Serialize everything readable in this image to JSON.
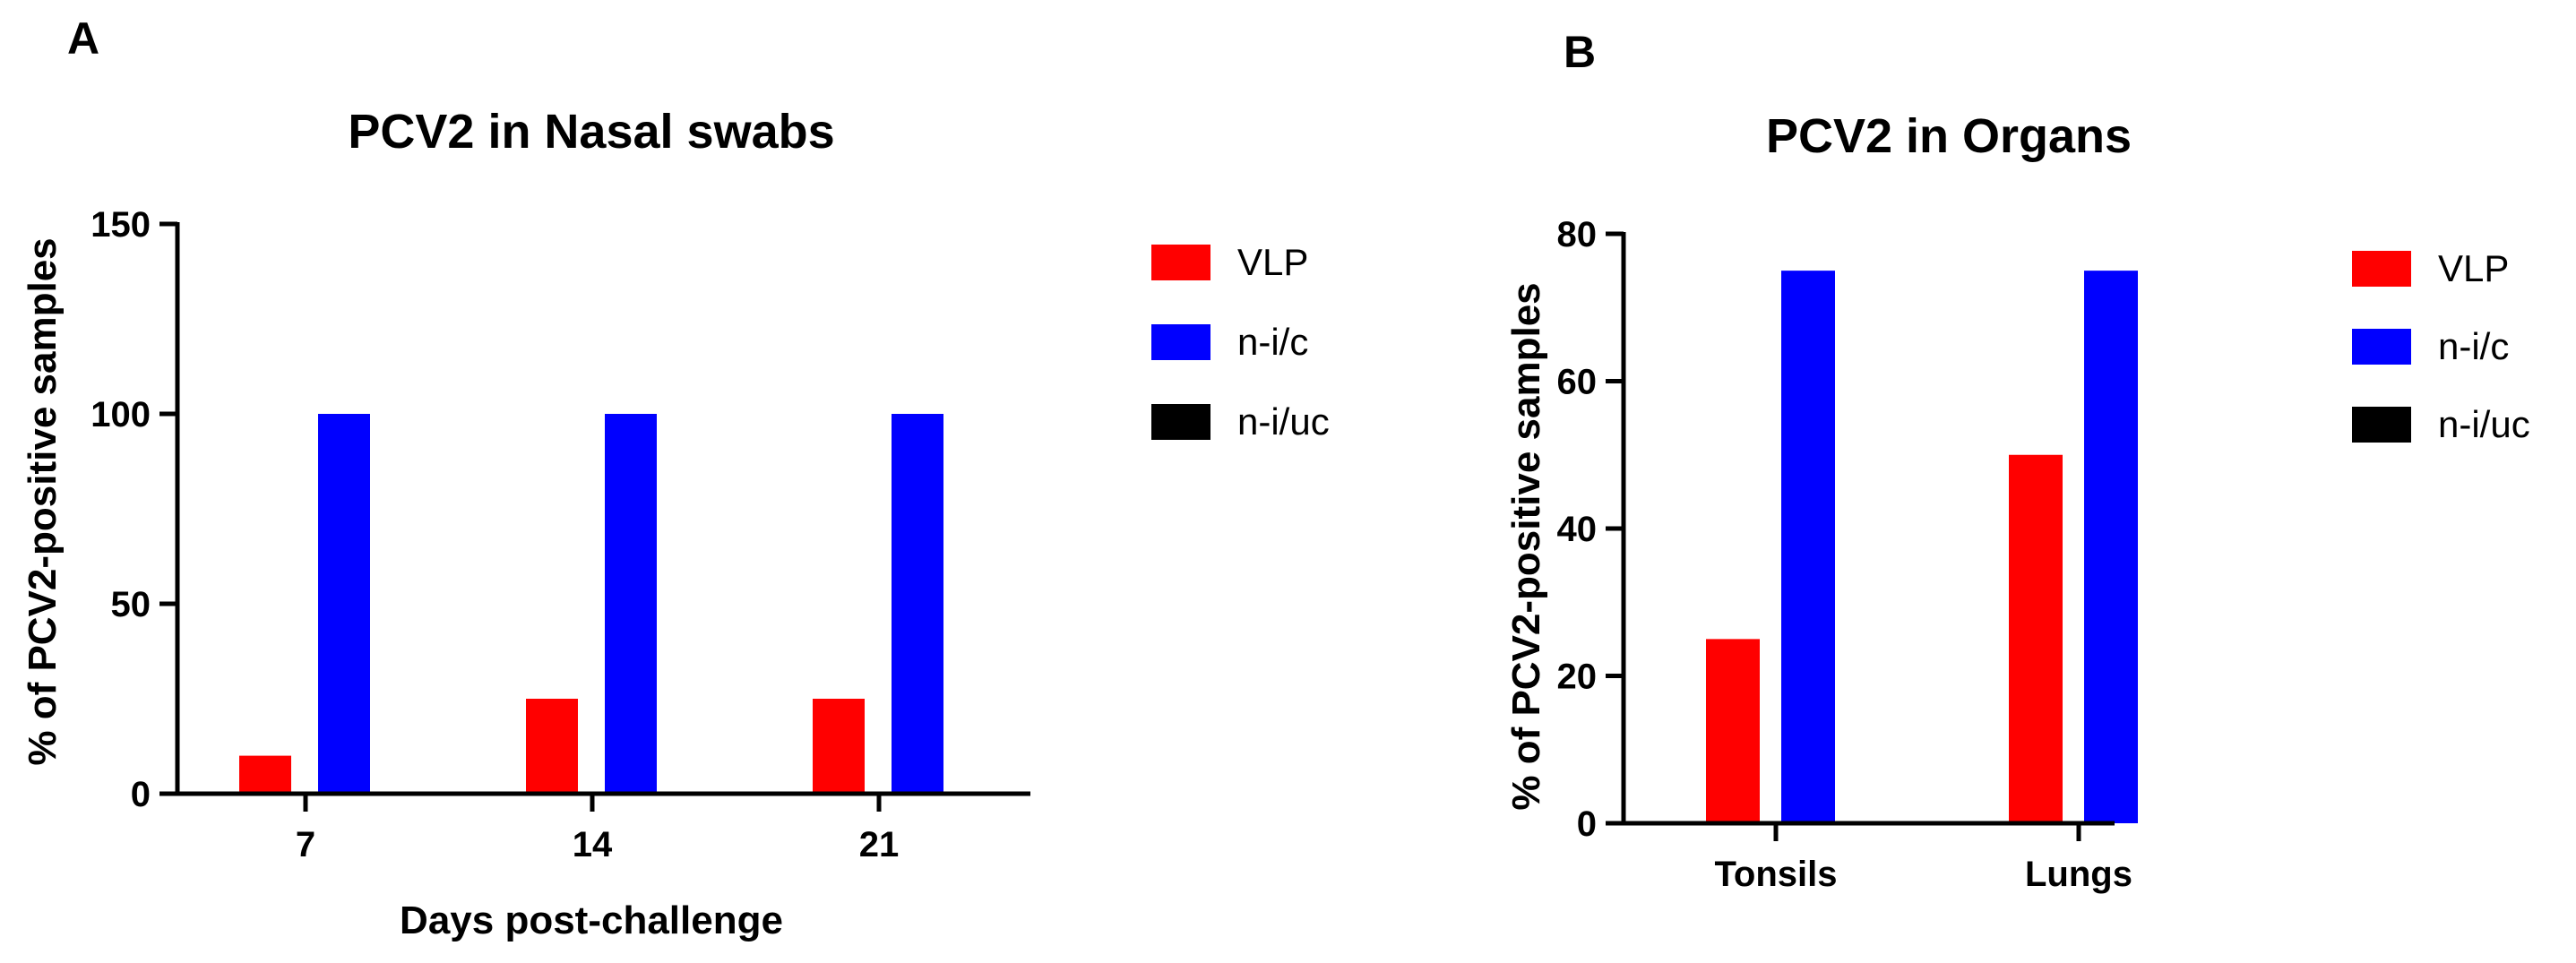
{
  "chart_data": [
    {
      "type": "bar",
      "panel_label": "A",
      "title": "PCV2 in Nasal swabs",
      "xlabel": "Days post-challenge",
      "ylabel": "% of PCV2-positive samples",
      "categories": [
        "7",
        "14",
        "21"
      ],
      "ylim": [
        0,
        150
      ],
      "yticks": [
        0,
        50,
        100,
        150
      ],
      "series": [
        {
          "name": "VLP",
          "color": "#ff0000",
          "values": [
            10,
            25,
            25
          ]
        },
        {
          "name": "n-i/c",
          "color": "#0000ff",
          "values": [
            100,
            100,
            100
          ]
        },
        {
          "name": "n-i/uc",
          "color": "#000000",
          "values": [
            0,
            0,
            0
          ]
        }
      ],
      "legend": "right"
    },
    {
      "type": "bar",
      "panel_label": "B",
      "title": "PCV2 in Organs",
      "xlabel": "",
      "ylabel": "% of PCV2-positive samples",
      "categories": [
        "Tonsils",
        "Lungs"
      ],
      "ylim": [
        0,
        80
      ],
      "yticks": [
        0,
        20,
        40,
        60,
        80
      ],
      "series": [
        {
          "name": "VLP",
          "color": "#ff0000",
          "values": [
            25,
            50
          ]
        },
        {
          "name": "n-i/c",
          "color": "#0000ff",
          "values": [
            75,
            75
          ]
        },
        {
          "name": "n-i/uc",
          "color": "#000000",
          "values": [
            0,
            0
          ]
        }
      ],
      "legend": "right"
    }
  ]
}
